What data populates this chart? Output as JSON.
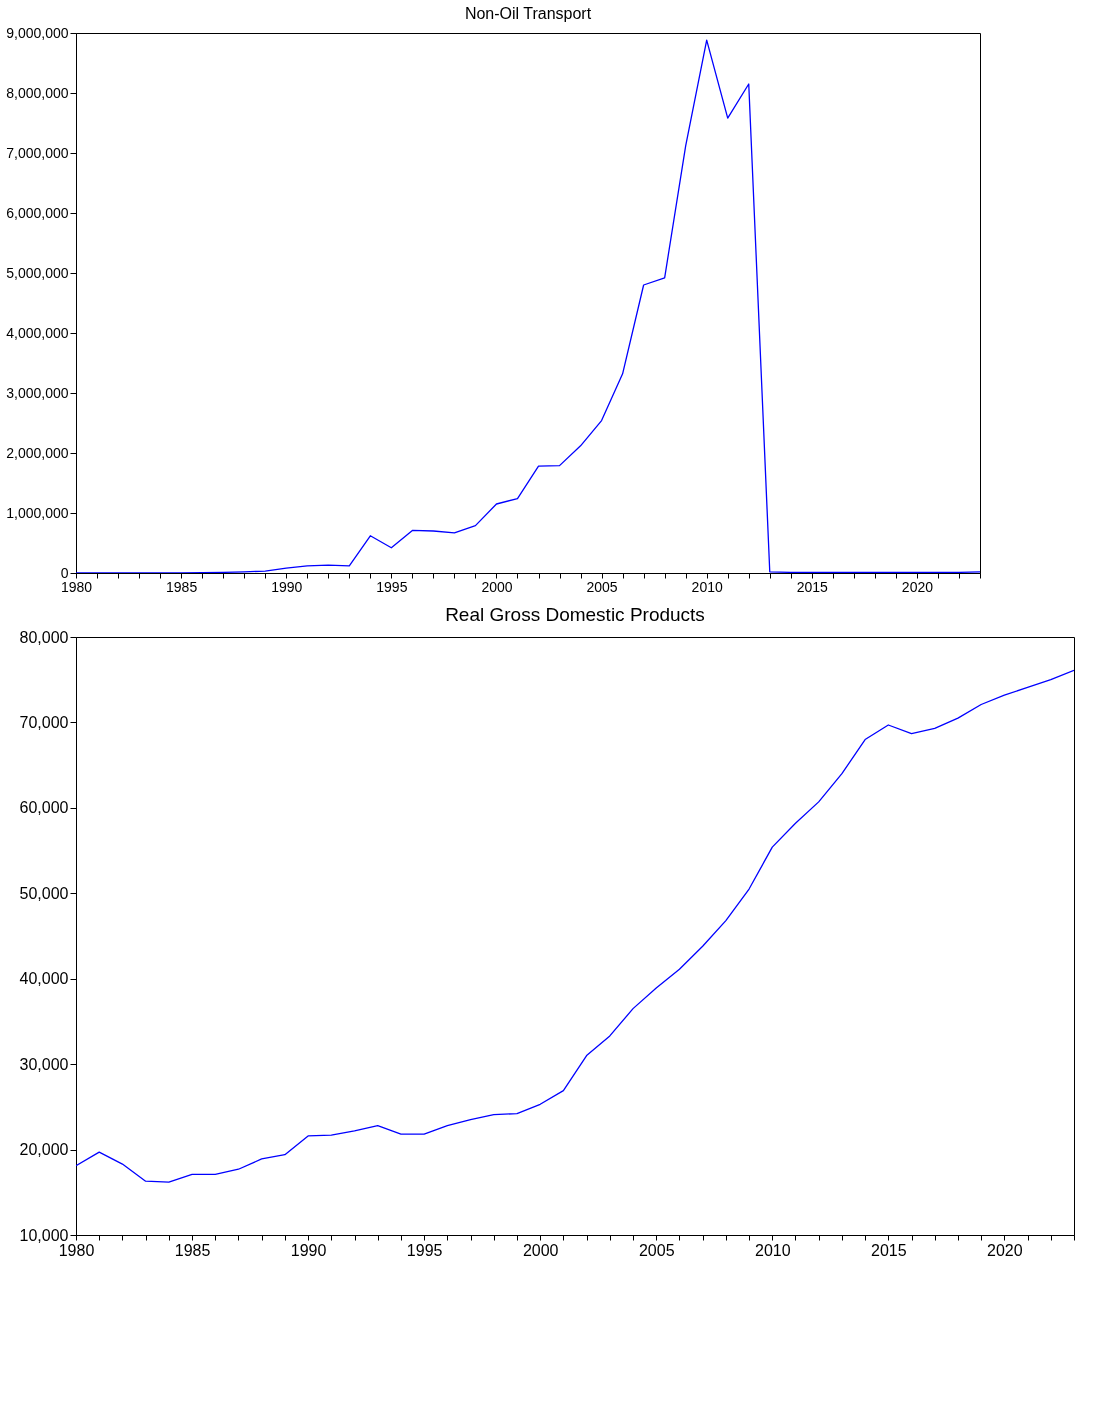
{
  "chart_data": [
    {
      "type": "line",
      "title": "Non-Oil Transport",
      "x": [
        1980,
        1981,
        1982,
        1983,
        1984,
        1985,
        1986,
        1987,
        1988,
        1989,
        1990,
        1991,
        1992,
        1993,
        1994,
        1995,
        1996,
        1997,
        1998,
        1999,
        2000,
        2001,
        2002,
        2003,
        2004,
        2005,
        2006,
        2007,
        2008,
        2009,
        2010,
        2011,
        2012,
        2013,
        2014,
        2015,
        2016,
        2017,
        2018,
        2019,
        2020,
        2021,
        2022,
        2023
      ],
      "series": [
        {
          "color": "#0000ff",
          "values": [
            0,
            0,
            0,
            0,
            0,
            0,
            5000,
            10000,
            20000,
            30000,
            80000,
            120000,
            130000,
            120000,
            620000,
            420000,
            710000,
            700000,
            670000,
            790000,
            1150000,
            1240000,
            1780000,
            1790000,
            2120000,
            2540000,
            3320000,
            4800000,
            4920000,
            7120000,
            8880000,
            7580000,
            8150000,
            20000,
            10000,
            10000,
            10000,
            10000,
            10000,
            10000,
            10000,
            10000,
            10000,
            20000
          ]
        }
      ],
      "xlim": [
        1980,
        2023
      ],
      "xticks": [
        1980,
        {
          "value": 1981,
          "label": null
        },
        {
          "value": 1982,
          "label": null
        },
        {
          "value": 1983,
          "label": null
        },
        {
          "value": 1984,
          "label": null
        },
        1985,
        {
          "value": 1986,
          "label": null
        },
        {
          "value": 1987,
          "label": null
        },
        {
          "value": 1988,
          "label": null
        },
        {
          "value": 1989,
          "label": null
        },
        1990,
        {
          "value": 1991,
          "label": null
        },
        {
          "value": 1992,
          "label": null
        },
        {
          "value": 1993,
          "label": null
        },
        {
          "value": 1994,
          "label": null
        },
        1995,
        {
          "value": 1996,
          "label": null
        },
        {
          "value": 1997,
          "label": null
        },
        {
          "value": 1998,
          "label": null
        },
        {
          "value": 1999,
          "label": null
        },
        2000,
        {
          "value": 2001,
          "label": null
        },
        {
          "value": 2002,
          "label": null
        },
        {
          "value": 2003,
          "label": null
        },
        {
          "value": 2004,
          "label": null
        },
        2005,
        {
          "value": 2006,
          "label": null
        },
        {
          "value": 2007,
          "label": null
        },
        {
          "value": 2008,
          "label": null
        },
        {
          "value": 2009,
          "label": null
        },
        2010,
        {
          "value": 2011,
          "label": null
        },
        {
          "value": 2012,
          "label": null
        },
        {
          "value": 2013,
          "label": null
        },
        {
          "value": 2014,
          "label": null
        },
        2015,
        {
          "value": 2016,
          "label": null
        },
        {
          "value": 2017,
          "label": null
        },
        {
          "value": 2018,
          "label": null
        },
        {
          "value": 2019,
          "label": null
        },
        2020,
        {
          "value": 2021,
          "label": null
        },
        {
          "value": 2022,
          "label": null
        },
        {
          "value": 2023,
          "label": null
        }
      ],
      "ylim": [
        0,
        9000000
      ],
      "yticks": [
        0,
        {
          "value": 1000000,
          "label": "1,000,000"
        },
        {
          "value": 2000000,
          "label": "2,000,000"
        },
        {
          "value": 3000000,
          "label": "3,000,000"
        },
        {
          "value": 4000000,
          "label": "4,000,000"
        },
        {
          "value": 5000000,
          "label": "5,000,000"
        },
        {
          "value": 6000000,
          "label": "6,000,000"
        },
        {
          "value": 7000000,
          "label": "7,000,000"
        },
        {
          "value": 8000000,
          "label": "8,000,000"
        },
        {
          "value": 9000000,
          "label": "9,000,000"
        }
      ],
      "grid": false,
      "legend": false,
      "marker": "none",
      "line_style": "solid"
    },
    {
      "type": "line",
      "title": "Real Gross Domestic Products",
      "x": [
        1980,
        1981,
        1982,
        1983,
        1984,
        1985,
        1986,
        1987,
        1988,
        1989,
        1990,
        1991,
        1992,
        1993,
        1994,
        1995,
        1996,
        1997,
        1998,
        1999,
        2000,
        2001,
        2002,
        2003,
        2004,
        2005,
        2006,
        2007,
        2008,
        2009,
        2010,
        2011,
        2012,
        2013,
        2014,
        2015,
        2016,
        2017,
        2018,
        2019,
        2020,
        2021,
        2022,
        2023
      ],
      "series": [
        {
          "color": "#0000ff",
          "values": [
            18100,
            19700,
            18300,
            16300,
            16200,
            17100,
            17100,
            17700,
            18900,
            19400,
            21600,
            21700,
            22200,
            22800,
            21800,
            21800,
            22800,
            23500,
            24100,
            24200,
            25300,
            26900,
            31000,
            33300,
            36500,
            38900,
            41100,
            43800,
            46800,
            50500,
            55400,
            58200,
            60700,
            64000,
            68000,
            69700,
            68700,
            69300,
            70500,
            72100,
            73200,
            74100,
            75000,
            76100
          ]
        }
      ],
      "xlim": [
        1980,
        2023
      ],
      "xticks": [
        1980,
        {
          "value": 1981,
          "label": null
        },
        {
          "value": 1982,
          "label": null
        },
        {
          "value": 1983,
          "label": null
        },
        {
          "value": 1984,
          "label": null
        },
        1985,
        {
          "value": 1986,
          "label": null
        },
        {
          "value": 1987,
          "label": null
        },
        {
          "value": 1988,
          "label": null
        },
        {
          "value": 1989,
          "label": null
        },
        1990,
        {
          "value": 1991,
          "label": null
        },
        {
          "value": 1992,
          "label": null
        },
        {
          "value": 1993,
          "label": null
        },
        {
          "value": 1994,
          "label": null
        },
        1995,
        {
          "value": 1996,
          "label": null
        },
        {
          "value": 1997,
          "label": null
        },
        {
          "value": 1998,
          "label": null
        },
        {
          "value": 1999,
          "label": null
        },
        2000,
        {
          "value": 2001,
          "label": null
        },
        {
          "value": 2002,
          "label": null
        },
        {
          "value": 2003,
          "label": null
        },
        {
          "value": 2004,
          "label": null
        },
        2005,
        {
          "value": 2006,
          "label": null
        },
        {
          "value": 2007,
          "label": null
        },
        {
          "value": 2008,
          "label": null
        },
        {
          "value": 2009,
          "label": null
        },
        2010,
        {
          "value": 2011,
          "label": null
        },
        {
          "value": 2012,
          "label": null
        },
        {
          "value": 2013,
          "label": null
        },
        {
          "value": 2014,
          "label": null
        },
        2015,
        {
          "value": 2016,
          "label": null
        },
        {
          "value": 2017,
          "label": null
        },
        {
          "value": 2018,
          "label": null
        },
        {
          "value": 2019,
          "label": null
        },
        2020,
        {
          "value": 2021,
          "label": null
        },
        {
          "value": 2022,
          "label": null
        },
        {
          "value": 2023,
          "label": null
        }
      ],
      "ylim": [
        10000,
        80000
      ],
      "yticks": [
        {
          "value": 10000,
          "label": "10,000"
        },
        {
          "value": 20000,
          "label": "20,000"
        },
        {
          "value": 30000,
          "label": "30,000"
        },
        {
          "value": 40000,
          "label": "40,000"
        },
        {
          "value": 50000,
          "label": "50,000"
        },
        {
          "value": 60000,
          "label": "60,000"
        },
        {
          "value": 70000,
          "label": "70,000"
        },
        {
          "value": 80000,
          "label": "80,000"
        }
      ],
      "grid": false,
      "legend": false,
      "marker": "none",
      "line_style": "solid"
    }
  ]
}
